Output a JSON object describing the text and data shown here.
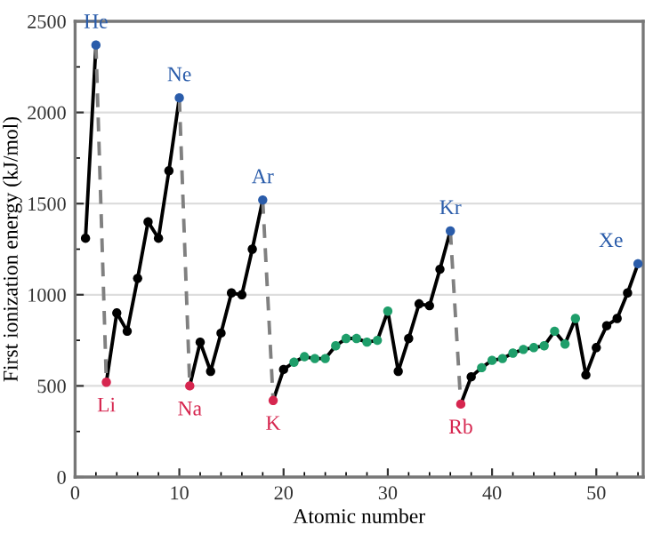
{
  "chart_data": {
    "type": "line",
    "xlabel": "Atomic number",
    "ylabel": "First ionization energy (kJ/mol)",
    "xlim": [
      0,
      54.5
    ],
    "ylim": [
      0,
      2500
    ],
    "xticks": [
      0,
      10,
      20,
      30,
      40,
      50
    ],
    "yticks": [
      0,
      500,
      1000,
      1500,
      2000,
      2500
    ],
    "grid": "y",
    "marker": "none",
    "line_style": "solid",
    "series": [
      {
        "color": "#000000",
        "x": [
          1,
          2
        ],
        "values": [
          1310,
          2370
        ]
      },
      {
        "color": "#000000",
        "x": [
          3,
          4,
          5,
          6,
          7,
          8,
          9,
          10
        ],
        "values": [
          520,
          900,
          800,
          1090,
          1400,
          1310,
          1680,
          2080
        ]
      },
      {
        "color": "#000000",
        "x": [
          11,
          12,
          13,
          14,
          15,
          16,
          17,
          18
        ],
        "values": [
          500,
          740,
          580,
          790,
          1010,
          1000,
          1250,
          1520
        ]
      },
      {
        "color": "#000000",
        "x": [
          19,
          20,
          21,
          22,
          23,
          24,
          25,
          26,
          27,
          28,
          29,
          30,
          31,
          32,
          33,
          34,
          35,
          36
        ],
        "values": [
          420,
          590,
          630,
          660,
          650,
          650,
          720,
          760,
          760,
          740,
          750,
          910,
          580,
          760,
          950,
          940,
          1140,
          1350
        ]
      },
      {
        "color": "#000000",
        "x": [
          37,
          38,
          39,
          40,
          41,
          42,
          43,
          44,
          45,
          46,
          47,
          48,
          49,
          50,
          51,
          52,
          53,
          54
        ],
        "values": [
          400,
          550,
          600,
          640,
          650,
          680,
          700,
          710,
          720,
          800,
          730,
          870,
          560,
          710,
          830,
          870,
          1010,
          1170
        ]
      },
      {
        "color": "#808080",
        "line_style": "dashed",
        "x": [
          2,
          3
        ],
        "values": [
          2370,
          520
        ]
      },
      {
        "color": "#808080",
        "line_style": "dashed",
        "x": [
          10,
          11
        ],
        "values": [
          2080,
          500
        ]
      },
      {
        "color": "#808080",
        "line_style": "dashed",
        "x": [
          18,
          19
        ],
        "values": [
          1520,
          420
        ]
      },
      {
        "color": "#808080",
        "line_style": "dashed",
        "x": [
          36,
          37
        ],
        "values": [
          1350,
          400
        ]
      },
      {
        "type": "scatter",
        "marker": "circle",
        "x": [
          1,
          2,
          3,
          4,
          5,
          6,
          7,
          8,
          9,
          10,
          11,
          12,
          13,
          14,
          15,
          16,
          17,
          18,
          19,
          20,
          21,
          22,
          23,
          24,
          25,
          26,
          27,
          28,
          29,
          30,
          31,
          32,
          33,
          34,
          35,
          36,
          37,
          38,
          39,
          40,
          41,
          42,
          43,
          44,
          45,
          46,
          47,
          48,
          49,
          50,
          51,
          52,
          53,
          54
        ],
        "values": [
          1310,
          2370,
          520,
          900,
          800,
          1090,
          1400,
          1310,
          1680,
          2080,
          500,
          740,
          580,
          790,
          1010,
          1000,
          1250,
          1520,
          420,
          590,
          630,
          660,
          650,
          650,
          720,
          760,
          760,
          740,
          750,
          910,
          580,
          760,
          950,
          940,
          1140,
          1350,
          400,
          550,
          600,
          640,
          650,
          680,
          700,
          710,
          720,
          800,
          730,
          870,
          560,
          710,
          830,
          870,
          1010,
          1170
        ],
        "colors": [
          "#000000",
          "#2a5caa",
          "#d6264f",
          "#000000",
          "#000000",
          "#000000",
          "#000000",
          "#000000",
          "#000000",
          "#2a5caa",
          "#d6264f",
          "#000000",
          "#000000",
          "#000000",
          "#000000",
          "#000000",
          "#000000",
          "#2a5caa",
          "#d6264f",
          "#000000",
          "#1e9e6a",
          "#1e9e6a",
          "#1e9e6a",
          "#1e9e6a",
          "#1e9e6a",
          "#1e9e6a",
          "#1e9e6a",
          "#1e9e6a",
          "#1e9e6a",
          "#1e9e6a",
          "#000000",
          "#000000",
          "#000000",
          "#000000",
          "#000000",
          "#2a5caa",
          "#d6264f",
          "#000000",
          "#1e9e6a",
          "#1e9e6a",
          "#1e9e6a",
          "#1e9e6a",
          "#1e9e6a",
          "#1e9e6a",
          "#1e9e6a",
          "#1e9e6a",
          "#1e9e6a",
          "#1e9e6a",
          "#000000",
          "#000000",
          "#000000",
          "#000000",
          "#000000",
          "#2a5caa"
        ]
      }
    ],
    "annotations": [
      {
        "text": "He",
        "x": 2,
        "y": 2370
      },
      {
        "text": "Ne",
        "x": 10,
        "y": 2080
      },
      {
        "text": "Ar",
        "x": 18,
        "y": 1520
      },
      {
        "text": "Kr",
        "x": 36,
        "y": 1350
      },
      {
        "text": "Xe",
        "x": 54,
        "y": 1170
      },
      {
        "text": "Li",
        "x": 3,
        "y": 520
      },
      {
        "text": "Na",
        "x": 11,
        "y": 500
      },
      {
        "text": "K",
        "x": 19,
        "y": 420
      },
      {
        "text": "Rb",
        "x": 37,
        "y": 400
      }
    ]
  }
}
